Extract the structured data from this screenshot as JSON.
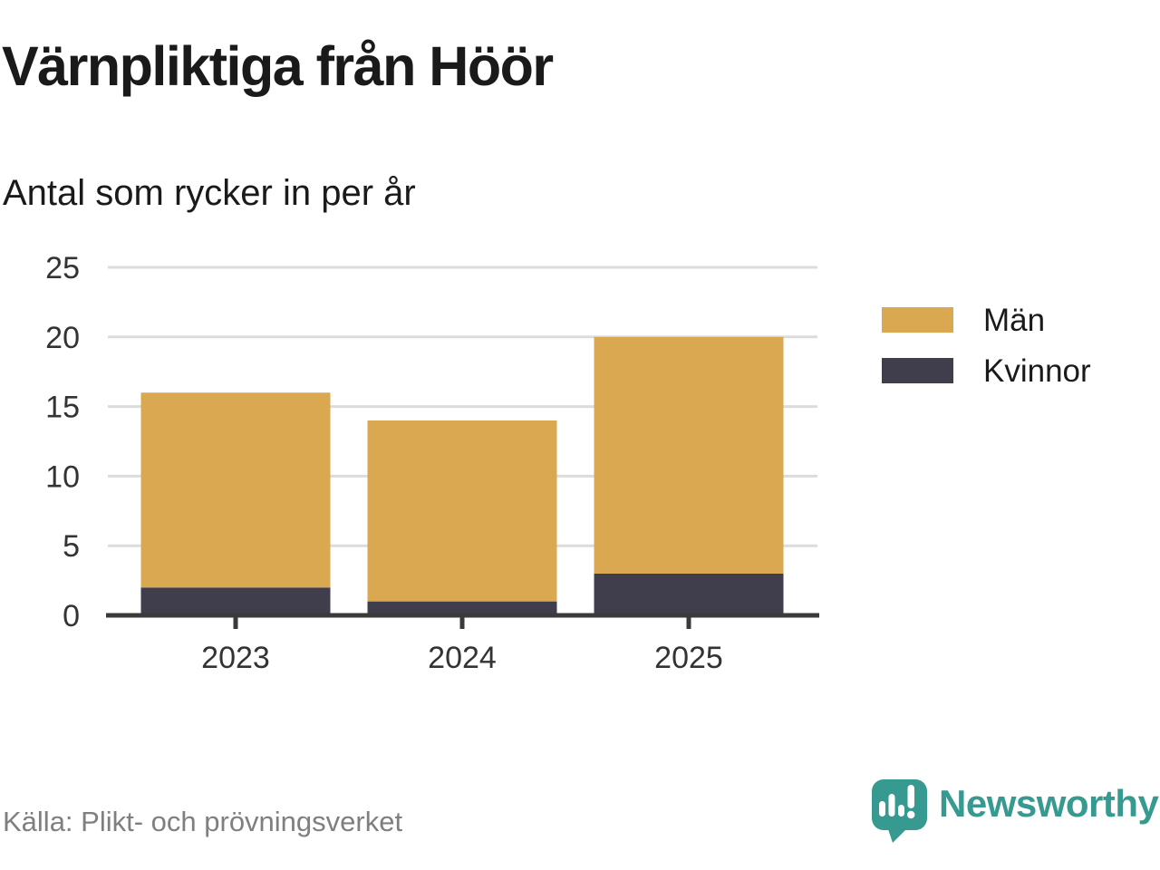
{
  "title": "Värnpliktiga från Höör",
  "subtitle": "Antal som rycker in per år",
  "source_note": "Källa: Plikt- och prövningsverket",
  "brand": {
    "name": "Newsworthy",
    "color": "#379A90"
  },
  "colors": {
    "men": "#DAA850",
    "women": "#403E4C",
    "grid": "#DCDCDC",
    "axis": "#3A3A3A",
    "tick_label": "#333333",
    "title_text": "#1A1A1A",
    "muted_text": "#7F7F7F"
  },
  "legend": {
    "position": "right",
    "items": [
      {
        "label": "Män",
        "color": "#DAA850"
      },
      {
        "label": "Kvinnor",
        "color": "#403E4C"
      }
    ]
  },
  "chart_data": {
    "type": "bar",
    "stacked": true,
    "title": "Värnpliktiga från Höör",
    "subtitle": "Antal som rycker in per år",
    "categories": [
      "2023",
      "2024",
      "2025"
    ],
    "series": [
      {
        "name": "Kvinnor",
        "color": "#403E4C",
        "values": [
          2,
          1,
          3
        ]
      },
      {
        "name": "Män",
        "color": "#DAA850",
        "values": [
          14,
          13,
          17
        ]
      }
    ],
    "stacked_totals": [
      16,
      14,
      20
    ],
    "xlabel": "",
    "ylabel": "",
    "ylim": [
      0,
      25
    ],
    "yticks": [
      0,
      5,
      10,
      15,
      20,
      25
    ],
    "grid": "horizontal",
    "legend_position": "right"
  }
}
